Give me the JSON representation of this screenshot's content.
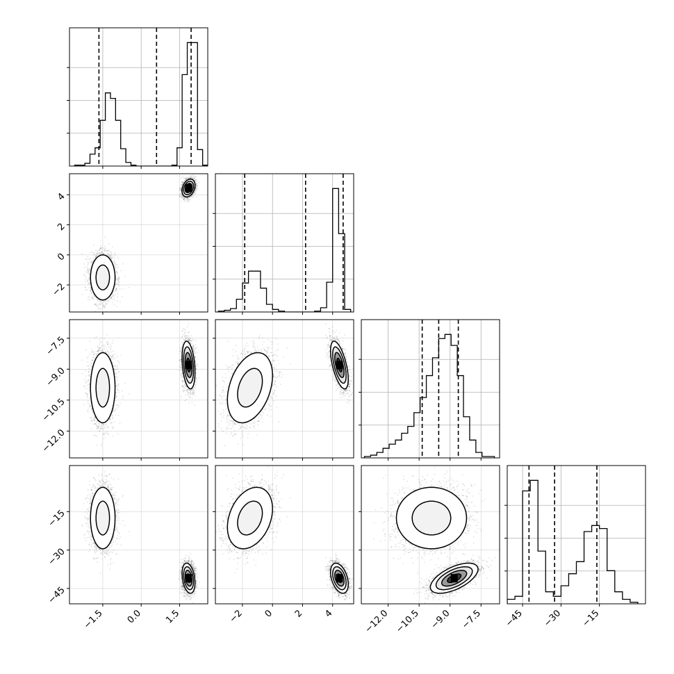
{
  "chart_data": {
    "type": "corner",
    "parameters": 4,
    "grid": true,
    "axis_ranges": [
      [
        -2.8,
        2.6
      ],
      [
        -3.8,
        5.4
      ],
      [
        -13.3,
        -6.6
      ],
      [
        -51,
        3
      ]
    ],
    "ticks": [
      {
        "values": [
          -1.5,
          0.0,
          1.5
        ],
        "labels": [
          "−1.5",
          "0.0",
          "1.5"
        ]
      },
      {
        "values": [
          -2,
          0,
          2,
          4
        ],
        "labels": [
          "−2",
          "0",
          "2",
          "4"
        ]
      },
      {
        "values": [
          -12.0,
          -10.5,
          -9.0,
          -7.5
        ],
        "labels": [
          "−12.0",
          "−10.5",
          "−9.0",
          "−7.5"
        ]
      },
      {
        "values": [
          -45,
          -30,
          -15
        ],
        "labels": [
          "−45",
          "−30",
          "−15"
        ]
      }
    ],
    "quantiles": [
      [
        -1.65,
        0.6,
        1.95
      ],
      [
        -1.85,
        2.2,
        4.7
      ],
      [
        -10.35,
        -9.55,
        -8.6
      ],
      [
        -42.5,
        -32.5,
        -16.0
      ]
    ],
    "histograms": [
      {
        "x": [
          -2.5,
          -2.3,
          -2.1,
          -1.9,
          -1.7,
          -1.5,
          -1.3,
          -1.1,
          -0.9,
          -0.7,
          -0.5,
          -0.3,
          -0.1,
          0.1,
          0.3,
          0.5,
          0.7,
          0.9,
          1.1,
          1.3,
          1.5,
          1.7,
          1.9,
          2.1,
          2.3,
          2.5
        ],
        "counts": [
          0.01,
          0.01,
          0.03,
          0.13,
          0.2,
          0.5,
          0.8,
          0.74,
          0.5,
          0.19,
          0.04,
          0.01,
          0,
          0,
          0,
          0,
          0,
          0,
          0,
          0.01,
          0.2,
          1.0,
          1.35,
          1.35,
          0.18,
          0.01
        ]
      },
      {
        "x": [
          -3.4,
          -3.0,
          -2.6,
          -2.2,
          -1.8,
          -1.4,
          -1.0,
          -0.6,
          -0.2,
          0.2,
          0.6,
          1.0,
          1.4,
          1.8,
          2.2,
          2.6,
          3.0,
          3.4,
          3.8,
          4.2,
          4.6,
          5.0
        ],
        "counts": [
          0.01,
          0.02,
          0.04,
          0.15,
          0.34,
          0.48,
          0.48,
          0.28,
          0.09,
          0.03,
          0.01,
          0,
          0,
          0,
          0,
          0,
          0.01,
          0.05,
          0.35,
          1.45,
          0.92,
          0.03
        ]
      },
      {
        "x": [
          -13.0,
          -12.7,
          -12.4,
          -12.1,
          -11.8,
          -11.5,
          -11.2,
          -10.9,
          -10.6,
          -10.3,
          -10.0,
          -9.7,
          -9.4,
          -9.1,
          -8.8,
          -8.5,
          -8.2,
          -7.9,
          -7.6,
          -7.3,
          -7.0
        ],
        "counts": [
          0.01,
          0.02,
          0.04,
          0.07,
          0.1,
          0.13,
          0.18,
          0.23,
          0.33,
          0.44,
          0.6,
          0.73,
          0.87,
          0.9,
          0.82,
          0.6,
          0.3,
          0.13,
          0.04,
          0.01,
          0.01
        ]
      },
      {
        "x": [
          -49.5,
          -46.5,
          -43.5,
          -40.5,
          -37.5,
          -34.5,
          -31.5,
          -28.5,
          -25.5,
          -22.5,
          -19.5,
          -16.5,
          -13.5,
          -10.5,
          -7.5,
          -4.5,
          -1.5
        ],
        "counts": [
          0.03,
          0.05,
          0.75,
          0.82,
          0.35,
          0.08,
          0.05,
          0.12,
          0.2,
          0.28,
          0.48,
          0.52,
          0.5,
          0.22,
          0.08,
          0.03,
          0.01
        ]
      }
    ],
    "clusters": [
      {
        "mean": [
          -1.5,
          -1.5,
          -9.9,
          -17.5
        ],
        "sd": [
          0.24,
          0.75,
          0.85,
          6.0
        ],
        "corr": {
          "0-1": 0.0,
          "0-2": 0.0,
          "0-3": 0.0,
          "1-2": 0.35,
          "1-3": 0.3,
          "2-3": 0.0
        },
        "weight": 0.5
      },
      {
        "mean": [
          1.85,
          4.45,
          -8.8,
          -41.0
        ],
        "sd": [
          0.12,
          0.28,
          0.55,
          2.8
        ],
        "corr": {
          "0-1": 0.3,
          "0-2": -0.3,
          "0-3": -0.3,
          "1-2": -0.6,
          "1-3": -0.4,
          "2-3": 0.6
        },
        "weight": 0.5
      }
    ]
  }
}
